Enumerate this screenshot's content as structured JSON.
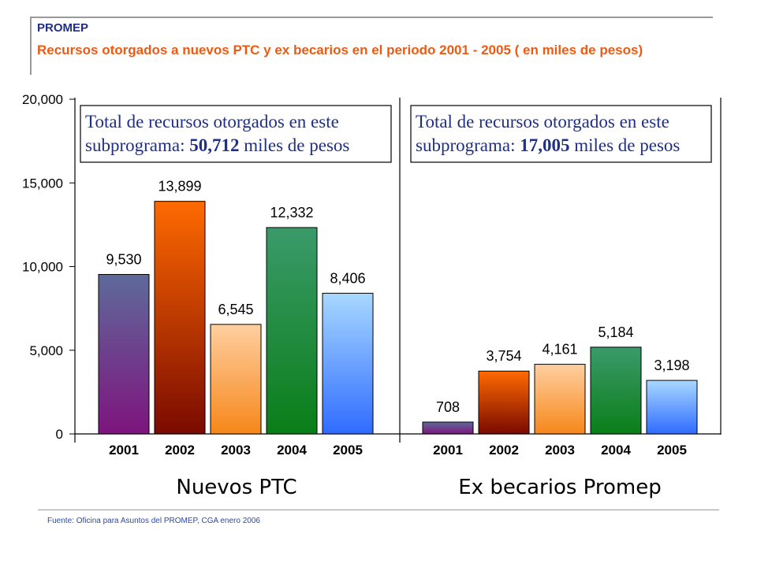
{
  "header": {
    "label": "PROMEP",
    "title": "Recursos otorgados a nuevos PTC y ex becarios en el periodo  2001 - 2005  ( en miles de pesos)"
  },
  "footer": {
    "source": "Fuente: Oficina para Asuntos del PROMEP,  CGA enero 2006"
  },
  "colors": {
    "header_label": "#1f2f86",
    "title": "#ee5a12",
    "box_text": "#1f2f86",
    "bar_gradients": {
      "2001": [
        "#5e6a9a",
        "#7e147e"
      ],
      "2002": [
        "#ff6a00",
        "#7a0a00"
      ],
      "2003": [
        "#ffcfa0",
        "#f6871a"
      ],
      "2004": [
        "#3a9a6a",
        "#0a7e18"
      ],
      "2005": [
        "#a8d8ff",
        "#2f6cff"
      ]
    }
  },
  "chart_data": {
    "type": "bar",
    "y_axis": {
      "ylim": [
        0,
        20000
      ],
      "tick_labels": [
        "0",
        "5,000",
        "10,000",
        "15,000",
        "20,000"
      ],
      "tick_values": [
        0,
        5000,
        10000,
        15000,
        20000
      ]
    },
    "grid": false,
    "panels": [
      {
        "name": "Nuevos PTC",
        "categories": [
          "2001",
          "2002",
          "2003",
          "2004",
          "2005"
        ],
        "values": [
          9530,
          13899,
          6545,
          12332,
          8406
        ],
        "value_labels": [
          "9,530",
          "13,899",
          "6,545",
          "12,332",
          "8,406"
        ],
        "note": {
          "line1": "Total de recursos otorgados en este",
          "line2_prefix": "subprograma: ",
          "total": "50,712",
          "line2_suffix": " miles de pesos"
        }
      },
      {
        "name": "Ex becarios Promep",
        "categories": [
          "2001",
          "2002",
          "2003",
          "2004",
          "2005"
        ],
        "values": [
          708,
          3754,
          4161,
          5184,
          3198
        ],
        "value_labels": [
          "708",
          "3,754",
          "4,161",
          "5,184",
          "3,198"
        ],
        "note": {
          "line1": "Total de recursos otorgados en este",
          "line2_prefix": "subprograma: ",
          "total": "17,005",
          "line2_suffix": " miles de pesos"
        }
      }
    ]
  }
}
